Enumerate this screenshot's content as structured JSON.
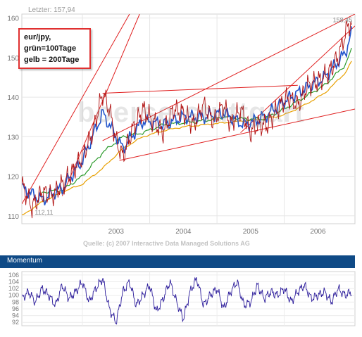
{
  "chart_data": [
    {
      "type": "line",
      "header_text": "Letzter: 157,94",
      "title": "",
      "xlabel": "",
      "ylabel": "",
      "x_ticks": [
        "2003",
        "2004",
        "2005",
        "2006"
      ],
      "y_ticks": [
        110,
        120,
        130,
        140,
        150,
        160
      ],
      "ylim": [
        108,
        161
      ],
      "xlim": [
        2002.1,
        2007.05
      ],
      "grid": true,
      "legend": {
        "placement": "top-left",
        "lines": [
          "eur/jpy,",
          "grün=100Tage",
          "gelb = 200Tage"
        ]
      },
      "annotations": [
        {
          "text": "158,45",
          "x": 2006.95,
          "y": 158.45
        },
        {
          "text": "112,11",
          "x": 2002.25,
          "y": 112.11
        }
      ],
      "watermark": "boerse-stuttgart",
      "source": "Quelle: (c) 2007 Interactive Data Managed Solutions AG",
      "colors": {
        "price": "#b01010",
        "ma_short": "#2255cc",
        "ma100": "#2a9a2a",
        "ma200": "#e8a000",
        "trend": "#e02020"
      },
      "series": [
        {
          "name": "eur/jpy",
          "x": [
            2002.1,
            2002.25,
            2002.4,
            2002.55,
            2002.7,
            2002.85,
            2003.0,
            2003.15,
            2003.3,
            2003.4,
            2003.5,
            2003.6,
            2003.75,
            2003.9,
            2004.05,
            2004.2,
            2004.35,
            2004.5,
            2004.65,
            2004.8,
            2004.95,
            2005.1,
            2005.2,
            2005.35,
            2005.5,
            2005.6,
            2005.75,
            2005.9,
            2006.05,
            2006.2,
            2006.35,
            2006.5,
            2006.65,
            2006.8,
            2006.95,
            2007.0
          ],
          "values": [
            118,
            112.1,
            116,
            115,
            118,
            121,
            125,
            131,
            141,
            137,
            129,
            125,
            132,
            137,
            134,
            131,
            137,
            136,
            133,
            138,
            134,
            138,
            133,
            137,
            131,
            133,
            133,
            137,
            140,
            138,
            143,
            144,
            146,
            150,
            158.45,
            157.94
          ]
        },
        {
          "name": "grün=100Tage",
          "x": [
            2002.4,
            2002.7,
            2003.0,
            2003.3,
            2003.6,
            2003.9,
            2004.2,
            2004.5,
            2004.8,
            2005.1,
            2005.4,
            2005.7,
            2006.0,
            2006.3,
            2006.6,
            2006.9,
            2007.0
          ],
          "values": [
            116,
            116.5,
            120,
            126,
            130,
            131,
            133,
            133.5,
            134,
            135,
            134.5,
            134.5,
            137,
            140,
            143,
            148,
            152
          ]
        },
        {
          "name": "gelb = 200Tage",
          "x": [
            2002.1,
            2002.4,
            2002.7,
            2003.0,
            2003.3,
            2003.6,
            2003.9,
            2004.2,
            2004.5,
            2004.8,
            2005.1,
            2005.4,
            2005.7,
            2006.0,
            2006.3,
            2006.6,
            2006.9,
            2007.0
          ],
          "values": [
            110,
            113.5,
            116,
            118,
            122,
            127,
            130,
            131.5,
            132.5,
            133,
            133.5,
            134,
            134.5,
            135.5,
            138,
            141,
            146,
            149
          ]
        },
        {
          "name": "",
          "x": [
            2002.1,
            2002.4,
            2002.7,
            2003.0,
            2003.3,
            2003.6,
            2003.9,
            2004.2,
            2004.5,
            2004.8,
            2005.1,
            2005.4,
            2005.7,
            2006.0,
            2006.3,
            2006.6,
            2006.9,
            2007.0
          ],
          "values": [
            117,
            114,
            117,
            124,
            136,
            127,
            134,
            133,
            135,
            135,
            136,
            133,
            135,
            139,
            142,
            145,
            151,
            156
          ]
        }
      ],
      "trend_lines": [
        {
          "x": [
            2002.1,
            2003.7
          ],
          "values": [
            113,
            161
          ]
        },
        {
          "x": [
            2002.7,
            2003.85
          ],
          "values": [
            115,
            161
          ]
        },
        {
          "x": [
            2003.3,
            2007.05
          ],
          "values": [
            129,
            161
          ]
        },
        {
          "x": [
            2003.3,
            2006.2
          ],
          "values": [
            141,
            143
          ]
        },
        {
          "x": [
            2003.55,
            2007.05
          ],
          "values": [
            124,
            137
          ]
        },
        {
          "x": [
            2005.35,
            2007.05
          ],
          "values": [
            131,
            158
          ]
        }
      ]
    },
    {
      "type": "line",
      "title": "Momentum",
      "y_ticks": [
        92,
        94,
        96,
        98,
        100,
        102,
        104,
        106
      ],
      "ylim": [
        91,
        107
      ],
      "xlim": [
        2002.1,
        2007.05
      ],
      "color": "#2a1a9a",
      "series": [
        {
          "name": "",
          "x": [
            2002.1,
            2002.2,
            2002.3,
            2002.4,
            2002.5,
            2002.6,
            2002.7,
            2002.8,
            2002.9,
            2003.0,
            2003.1,
            2003.2,
            2003.3,
            2003.4,
            2003.5,
            2003.6,
            2003.7,
            2003.8,
            2003.9,
            2004.0,
            2004.1,
            2004.2,
            2004.3,
            2004.4,
            2004.5,
            2004.6,
            2004.7,
            2004.8,
            2004.9,
            2005.0,
            2005.1,
            2005.2,
            2005.3,
            2005.4,
            2005.5,
            2005.6,
            2005.7,
            2005.8,
            2005.9,
            2006.0,
            2006.1,
            2006.2,
            2006.3,
            2006.4,
            2006.5,
            2006.6,
            2006.7,
            2006.8,
            2006.9,
            2007.0
          ],
          "values": [
            99,
            101,
            98,
            102,
            100,
            97,
            103,
            99,
            101,
            104,
            98,
            102,
            105,
            96,
            92,
            101,
            104,
            97,
            100,
            103,
            95,
            99,
            104,
            98,
            93,
            101,
            105,
            97,
            100,
            102,
            96,
            101,
            104,
            97,
            98,
            103,
            99,
            101,
            100,
            102,
            98,
            101,
            103,
            99,
            100,
            101,
            98,
            102,
            100,
            101
          ]
        }
      ]
    }
  ]
}
